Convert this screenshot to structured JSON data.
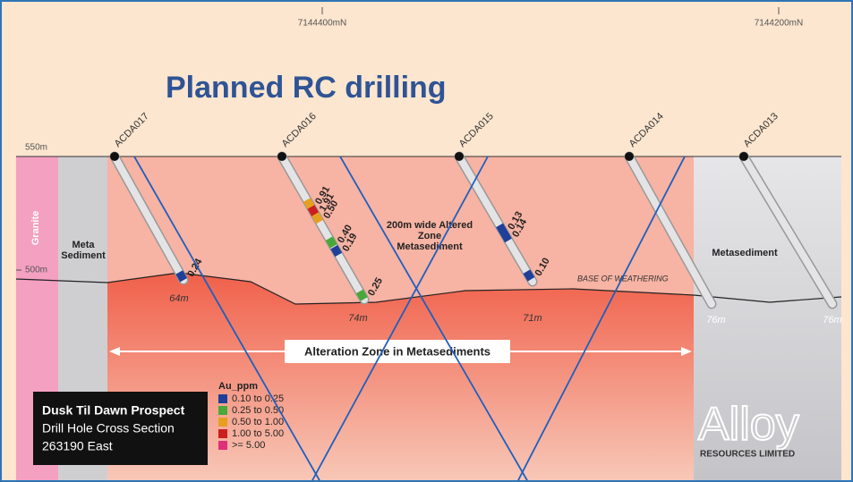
{
  "header": {
    "title": "Planned RC drilling"
  },
  "northings": [
    "7144400mN",
    "7144200mN"
  ],
  "elevations": [
    "550m",
    "500m"
  ],
  "units": {
    "granite": "Granite",
    "meta_sediment_left": "Meta Sediment",
    "altered": "200m wide Altered Zone Metasediment",
    "metasediment_right": "Metasediment",
    "weathering": "BASE OF WEATHERING",
    "alteration_zone": "Alteration Zone in Metasediments"
  },
  "holes": [
    {
      "name": "ACDA017",
      "depth": "64m",
      "assays": [
        {
          "value": "0.24",
          "color": "#1f3f99"
        }
      ]
    },
    {
      "name": "ACDA016",
      "depth": "74m",
      "assays": [
        {
          "value": "0.91",
          "color": "#e6a020"
        },
        {
          "value": "1.91",
          "color": "#cc1f1f"
        },
        {
          "value": "0.50",
          "color": "#e6a020"
        },
        {
          "value": "0.40",
          "color": "#4aa83a"
        },
        {
          "value": "0.19",
          "color": "#1f3f99"
        },
        {
          "value": "0.25",
          "color": "#4aa83a"
        }
      ]
    },
    {
      "name": "ACDA015",
      "depth": "71m",
      "assays": [
        {
          "value": "0.13",
          "color": "#1f3f99"
        },
        {
          "value": "0.14",
          "color": "#1f3f99"
        },
        {
          "value": "0.10",
          "color": "#1f3f99"
        }
      ]
    },
    {
      "name": "ACDA014",
      "depth": "76m",
      "assays": []
    },
    {
      "name": "ACDA013",
      "depth": "76m",
      "assays": []
    }
  ],
  "legend": {
    "title": "Au_ppm",
    "items": [
      {
        "label": "0.10 to 0.25",
        "color": "#1f3f99"
      },
      {
        "label": "0.25 to 0.50",
        "color": "#4aa83a"
      },
      {
        "label": "0.50 to 1.00",
        "color": "#e6a020"
      },
      {
        "label": "1.00 to 5.00",
        "color": "#cc1f1f"
      },
      {
        "label": ">= 5.00",
        "color": "#e0307a"
      }
    ]
  },
  "info_box": [
    "Dusk Til Dawn Prospect",
    "Drill Hole Cross Section",
    "263190 East"
  ],
  "logo": {
    "name": "Alloy",
    "subtitle": "RESOURCES LIMITED"
  }
}
